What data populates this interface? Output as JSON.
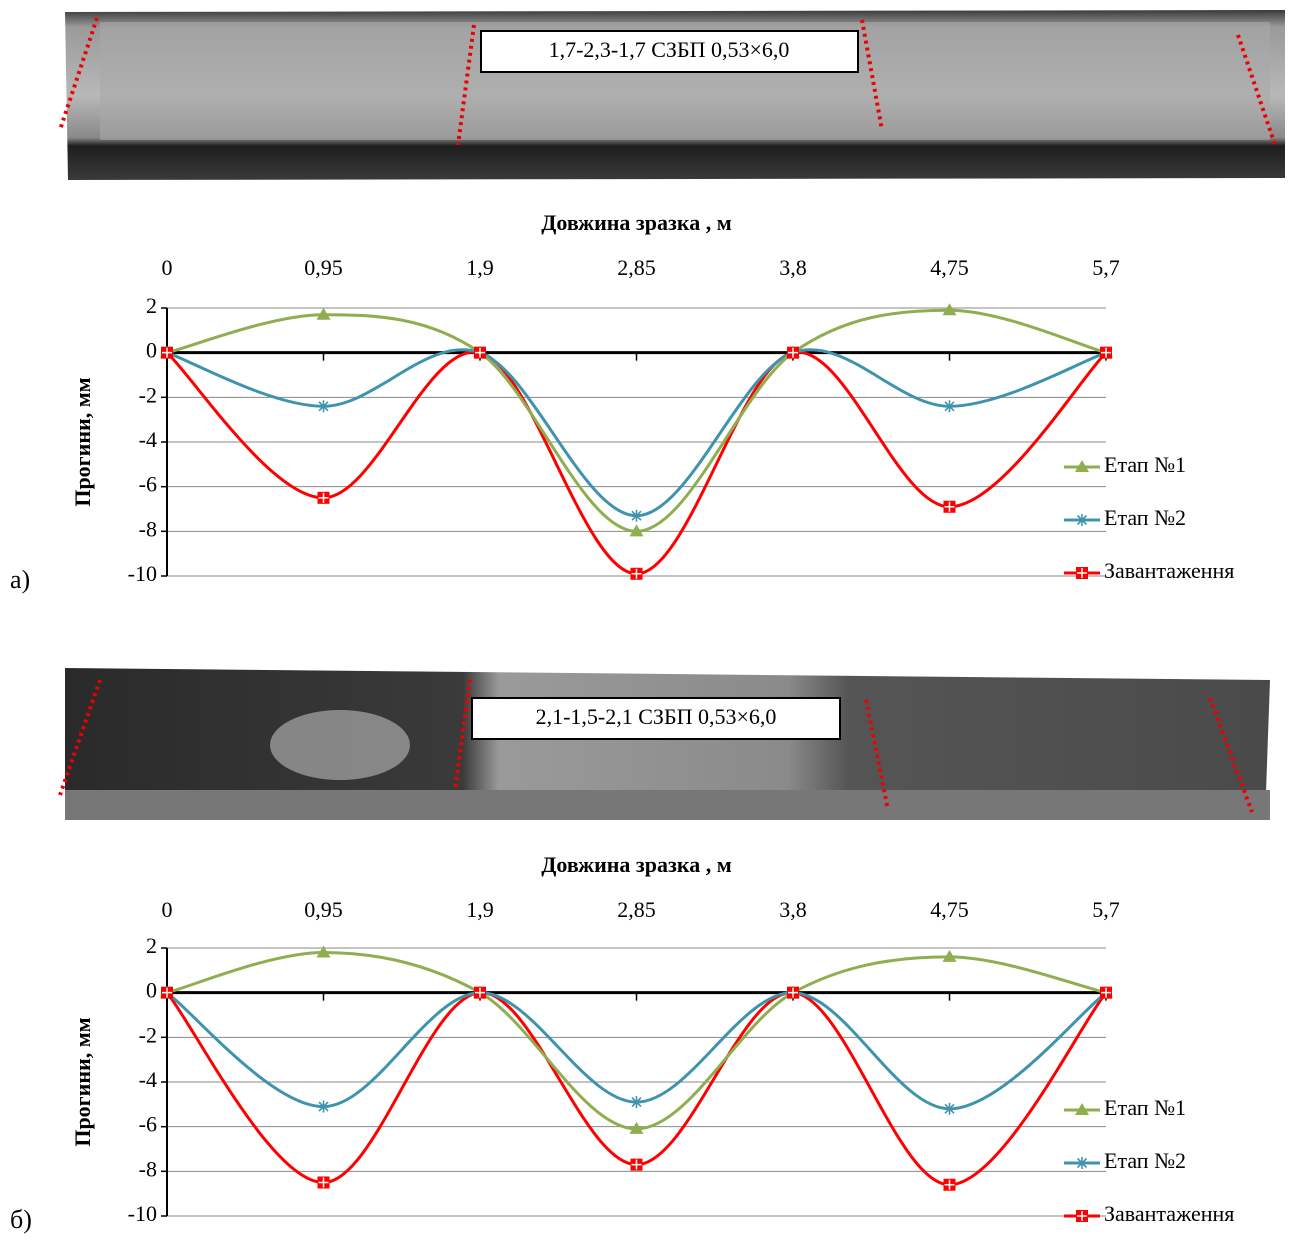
{
  "chart_data": [
    {
      "type": "line",
      "panel_label": "а)",
      "photo_label": "1,7-2,3-1,7 СЗБП 0,53×6,0",
      "x_label": "Довжина зразка , м",
      "y_label": "Прогини, мм",
      "x": [
        0,
        0.95,
        1.9,
        2.85,
        3.8,
        4.75,
        5.7
      ],
      "xlim": [
        0,
        5.7
      ],
      "xticks": [
        0,
        {
          "value": 0.95,
          "label": "0,95"
        },
        {
          "value": 1.9,
          "label": "1,9"
        },
        {
          "value": 2.85,
          "label": "2,85"
        },
        {
          "value": 3.8,
          "label": "3,8"
        },
        {
          "value": 4.75,
          "label": "4,75"
        },
        {
          "value": 5.7,
          "label": "5,7"
        }
      ],
      "ylim": [
        -10,
        2
      ],
      "yticks": [
        2,
        0,
        -2,
        -4,
        -6,
        -8,
        -10
      ],
      "grid": true,
      "legend": "right",
      "series": [
        {
          "name": "Етап №1",
          "color": "#8fae50",
          "marker": "triangle",
          "values": [
            0,
            1.7,
            0,
            -8.0,
            0,
            1.9,
            0
          ]
        },
        {
          "name": "Етап №2",
          "color": "#3f94ad",
          "marker": "asterisk",
          "values": [
            0,
            -2.4,
            0,
            -7.3,
            0,
            -2.4,
            0
          ]
        },
        {
          "name": "Завантаження",
          "color": "#ff0000",
          "marker": "square-cross",
          "values": [
            0,
            -6.5,
            0,
            -9.9,
            0,
            -6.9,
            0
          ]
        }
      ]
    },
    {
      "type": "line",
      "panel_label": "б)",
      "photo_label": "2,1-1,5-2,1 СЗБП 0,53×6,0",
      "x_label": "Довжина зразка , м",
      "y_label": "Прогини, мм",
      "x": [
        0,
        0.95,
        1.9,
        2.85,
        3.8,
        4.75,
        5.7
      ],
      "xlim": [
        0,
        5.7
      ],
      "xticks": [
        0,
        {
          "value": 0.95,
          "label": "0,95"
        },
        {
          "value": 1.9,
          "label": "1,9"
        },
        {
          "value": 2.85,
          "label": "2,85"
        },
        {
          "value": 3.8,
          "label": "3,8"
        },
        {
          "value": 4.75,
          "label": "4,75"
        },
        {
          "value": 5.7,
          "label": "5,7"
        }
      ],
      "ylim": [
        -10,
        2
      ],
      "yticks": [
        2,
        0,
        -2,
        -4,
        -6,
        -8,
        -10
      ],
      "grid": true,
      "legend": "right",
      "series": [
        {
          "name": "Етап №1",
          "color": "#8fae50",
          "marker": "triangle",
          "values": [
            0,
            1.8,
            0,
            -6.1,
            0,
            1.6,
            0
          ]
        },
        {
          "name": "Етап №2",
          "color": "#3f94ad",
          "marker": "asterisk",
          "values": [
            0,
            -5.1,
            0,
            -4.9,
            0,
            -5.2,
            0
          ]
        },
        {
          "name": "Завантаження",
          "color": "#ff0000",
          "marker": "square-cross",
          "values": [
            0,
            -8.5,
            0,
            -7.7,
            0,
            -8.6,
            0
          ]
        }
      ]
    }
  ]
}
